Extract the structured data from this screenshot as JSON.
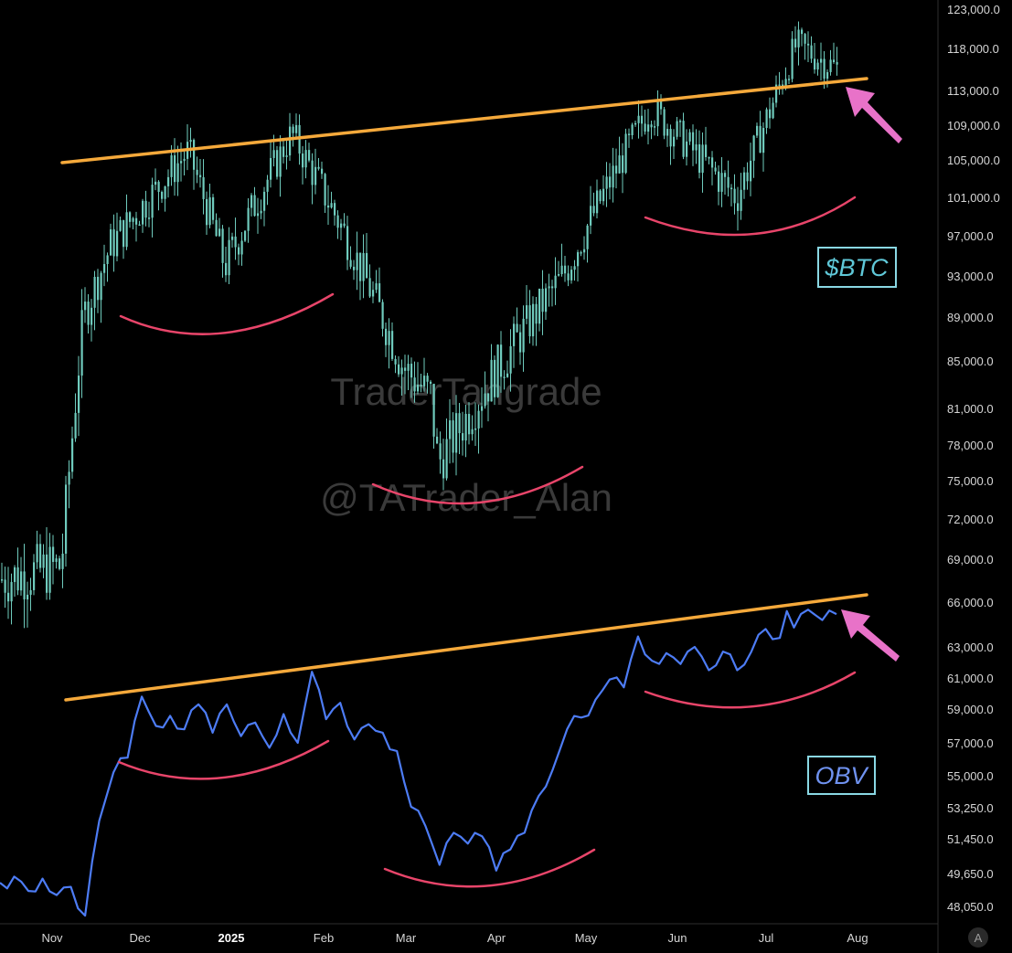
{
  "chart_data": [
    {
      "type": "candlestick",
      "label": "$BTC",
      "y_ticks": [
        "123,000.0",
        "118,000.0",
        "113,000.0",
        "109,000.0",
        "105,000.0",
        "101,000.0",
        "97,000.0",
        "93,000.0",
        "89,000.0",
        "85,000.0",
        "81,000.0",
        "78,000.0",
        "75,000.0",
        "72,000.0",
        "69,000.0"
      ],
      "y_tick_values": [
        123000,
        118000,
        113000,
        109000,
        105000,
        101000,
        97000,
        93000,
        89000,
        85000,
        81000,
        78000,
        75000,
        72000,
        69000
      ],
      "ylim": [
        65000,
        125000
      ],
      "x": [
        "2024-10-22",
        "2024-11-06",
        "2024-11-22",
        "2024-12-17",
        "2025-01-20",
        "2025-02-04",
        "2025-02-24",
        "2025-03-10",
        "2025-04-07",
        "2025-04-22",
        "2025-05-22",
        "2025-06-22",
        "2025-07-14",
        "2025-07-23"
      ],
      "close_path": [
        67500,
        68500,
        89000,
        96000,
        106000,
        94000,
        108000,
        96500,
        84500,
        82000,
        76500,
        93000,
        111000,
        101000,
        118500,
        115500
      ],
      "resistance_line": {
        "from": [
          "2024-11-07",
          105000
        ],
        "to": [
          "2025-07-27",
          114500
        ]
      },
      "highlights": [
        "cup",
        "cup",
        "cup",
        "arrow"
      ]
    },
    {
      "type": "line",
      "label": "OBV",
      "y_ticks": [
        "66,000.0",
        "63,000.0",
        "61,000.0",
        "59,000.0",
        "57,000.0",
        "55,000.0",
        "53,250.0",
        "51,450.0",
        "49,650.0",
        "48,050.0"
      ],
      "y_tick_values": [
        66000,
        63000,
        61000,
        59000,
        57000,
        55000,
        53250,
        51450,
        49650,
        48050
      ],
      "values": [
        49200,
        49500,
        48800,
        49400,
        48600,
        49000,
        47600,
        52500,
        55200,
        56100,
        59800,
        58000,
        58600,
        57800,
        59300,
        57600,
        59300,
        57400,
        58200,
        56700,
        58700,
        57000,
        61400,
        58400,
        59400,
        57200,
        58100,
        57600,
        56500,
        53300,
        52200,
        50100,
        51800,
        51200,
        51600,
        49800,
        50900,
        51800,
        53900,
        55400,
        57800,
        58500,
        59600,
        60900,
        60400,
        63700,
        62100,
        62600,
        61900,
        63000,
        61500,
        62700,
        61500,
        62700,
        64200,
        63600,
        67700,
        66500,
        67200,
        66800
      ],
      "resistance_line": {
        "from": [
          "2024-11-07",
          58800
        ],
        "to": [
          "2025-07-27",
          65500
        ]
      }
    }
  ],
  "x_axis": {
    "labels": [
      "Nov",
      "Dec",
      "2025",
      "Feb",
      "Mar",
      "Apr",
      "May",
      "Jun",
      "Jul",
      "Aug"
    ],
    "bold_label": "2025"
  },
  "watermark": {
    "line1": "TraderTangrade",
    "line2": "@TATrader_Alan"
  },
  "tags": {
    "btc": "$BTC",
    "obv": "OBV"
  },
  "corner_button": "A",
  "colors": {
    "background": "#000000",
    "candles": "#6fcbbd",
    "obv": "#4d7cf5",
    "resistance": "#f5a93b",
    "cup": "#e8456a",
    "arrow": "#e872c8",
    "btc_tag": "#5fc8d8",
    "obv_tag": "#6f92f0"
  }
}
